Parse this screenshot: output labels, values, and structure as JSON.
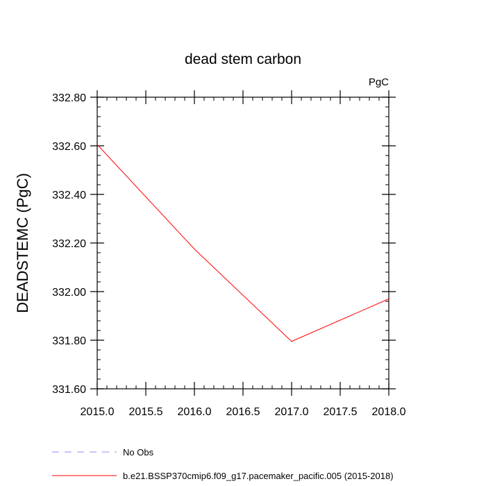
{
  "chart_data": {
    "type": "line",
    "title": "dead stem carbon",
    "units_label": "PgC",
    "xlabel": "",
    "ylabel": "DEADSTEMC  (PgC)",
    "xlim": [
      2015.0,
      2018.0
    ],
    "ylim": [
      331.6,
      332.8
    ],
    "x_ticks": [
      2015.0,
      2015.5,
      2016.0,
      2016.5,
      2017.0,
      2017.5,
      2018.0
    ],
    "x_tick_labels": [
      "2015.0",
      "2015.5",
      "2016.0",
      "2016.5",
      "2017.0",
      "2017.5",
      "2018.0"
    ],
    "y_ticks": [
      331.6,
      331.8,
      332.0,
      332.2,
      332.4,
      332.6,
      332.8
    ],
    "y_tick_labels": [
      "331.60",
      "331.80",
      "332.00",
      "332.20",
      "332.40",
      "332.60",
      "332.80"
    ],
    "grid": false,
    "legend_position": "bottom",
    "series": [
      {
        "name": "No Obs",
        "style": "dashed",
        "color": "#8f8fef",
        "x": [],
        "y": []
      },
      {
        "name": "b.e21.BSSP370cmip6.f09_g17.pacemaker_pacific.005 (2015-2018)",
        "style": "solid",
        "color": "#ff0000",
        "x": [
          2015.0,
          2016.0,
          2017.0,
          2018.0
        ],
        "y": [
          332.605,
          332.175,
          331.795,
          331.97
        ]
      }
    ]
  }
}
